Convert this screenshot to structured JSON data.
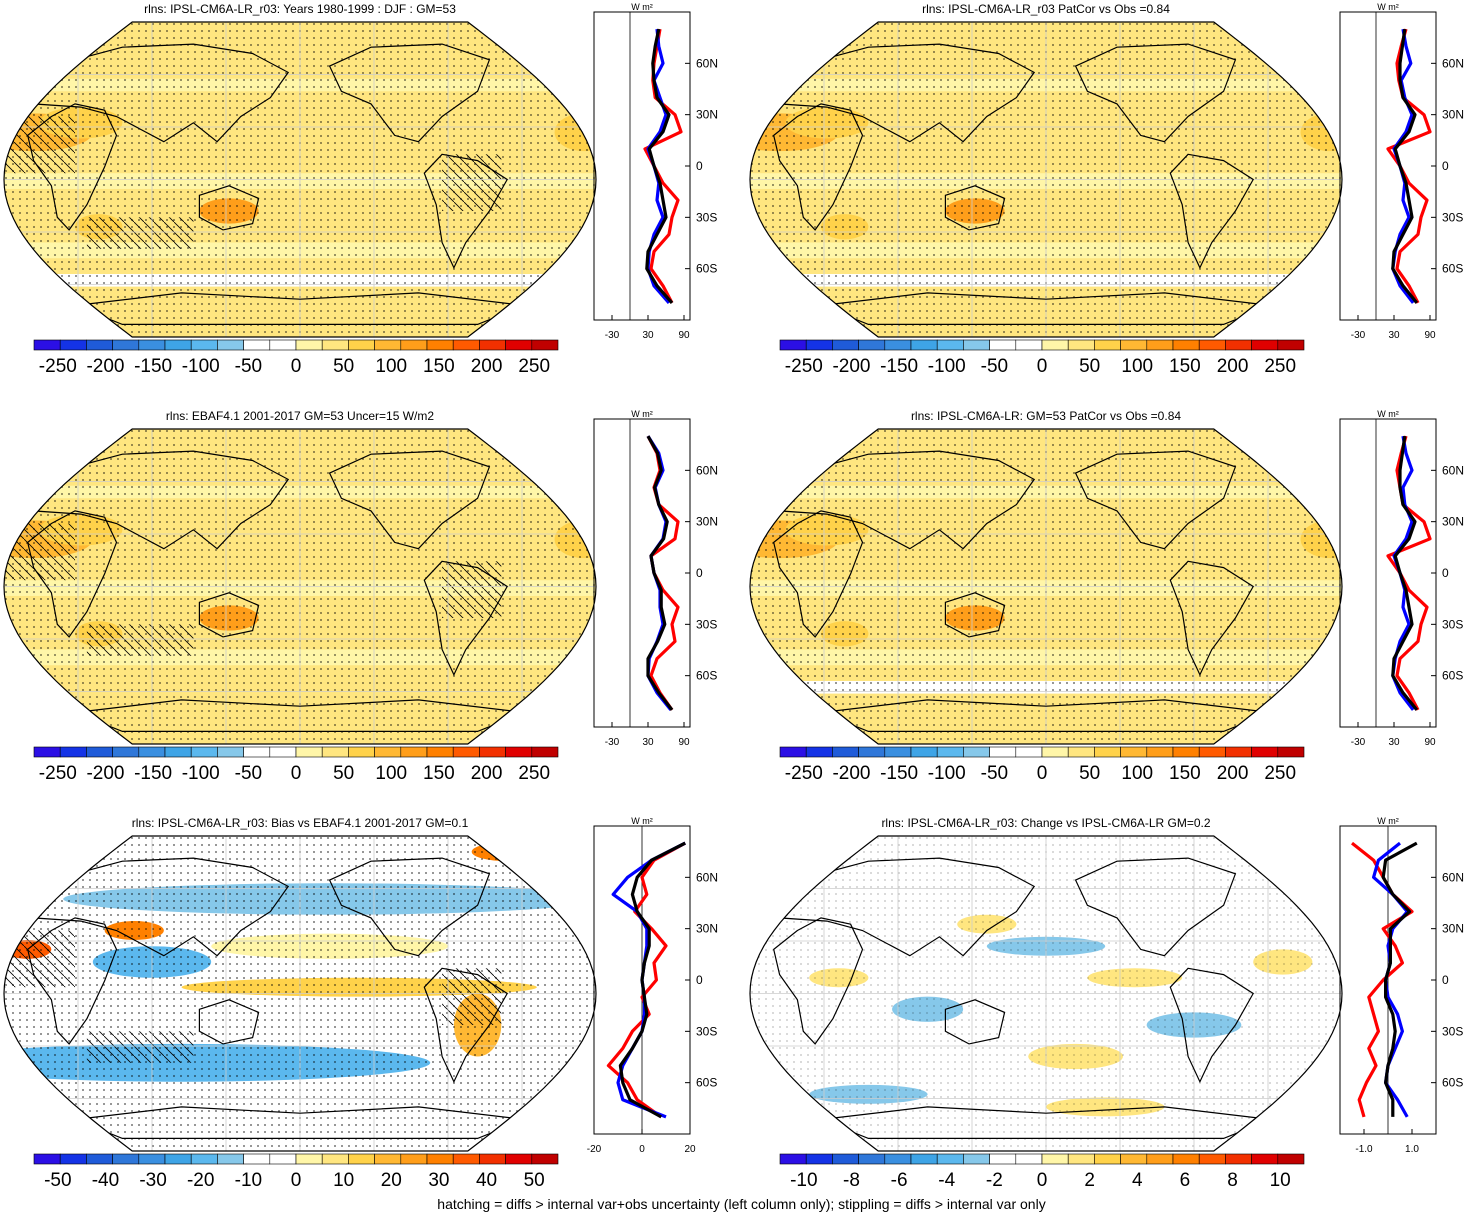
{
  "footer_note": "hatching = diffs > internal var+obs uncertainty (left column only); stippling = diffs > internal var only",
  "colors": {
    "land_outline": "#000000",
    "series_red": "#ff0000",
    "series_blue": "#0000ff",
    "series_black": "#000000"
  },
  "chart_data": [
    {
      "type": "heatmap",
      "title": "rlns: IPSL-CM6A-LR_r03: Years 1980-1999 : DJF : GM=53",
      "map_projection": "Robinson",
      "colorbar": {
        "ticks": [
          "-250",
          "-200",
          "-150",
          "-100",
          "-50",
          "0",
          "50",
          "100",
          "150",
          "200",
          "250"
        ],
        "range": [
          -275,
          275
        ],
        "colors": [
          "#2b0fe5",
          "#1433e6",
          "#1f5bd9",
          "#2f77d9",
          "#3a8fe0",
          "#3ea4e6",
          "#5bb8ee",
          "#86c8ea",
          "#ffffff",
          "#ffffff",
          "#fff6a8",
          "#ffe680",
          "#ffd24a",
          "#ffb833",
          "#ff9e1a",
          "#ff8000",
          "#ff5a00",
          "#f23000",
          "#e00000",
          "#c00000"
        ]
      },
      "pattern": {
        "base": "#ffe680",
        "white_band": true,
        "stippling": true,
        "hatching": true
      },
      "profile": {
        "unit": "W m²",
        "xlim": [
          -60,
          100
        ],
        "xticks": [
          "-30",
          "30",
          "90"
        ],
        "yticks": [
          "60N",
          "30N",
          "0",
          "30S",
          "60S"
        ],
        "lat_grid": [
          80,
          70,
          60,
          50,
          40,
          30,
          20,
          10,
          0,
          -10,
          -20,
          -30,
          -40,
          -50,
          -60,
          -70,
          -80
        ],
        "series": [
          {
            "color": "#ff0000",
            "values": [
              50,
              45,
              40,
              38,
              42,
              75,
              85,
              25,
              40,
              55,
              80,
              70,
              65,
              40,
              35,
              55,
              70
            ]
          },
          {
            "color": "#0000ff",
            "values": [
              45,
              48,
              55,
              40,
              50,
              60,
              50,
              30,
              40,
              48,
              45,
              55,
              40,
              32,
              30,
              40,
              65
            ]
          },
          {
            "color": "#000000",
            "values": [
              48,
              42,
              38,
              40,
              45,
              65,
              55,
              32,
              40,
              50,
              55,
              60,
              45,
              30,
              28,
              45,
              70
            ]
          }
        ]
      }
    },
    {
      "type": "heatmap",
      "title": "rlns: IPSL-CM6A-LR_r03 PatCor vs Obs =0.84",
      "map_projection": "Robinson",
      "colorbar": {
        "ticks": [
          "-250",
          "-200",
          "-150",
          "-100",
          "-50",
          "0",
          "50",
          "100",
          "150",
          "200",
          "250"
        ],
        "range": [
          -275,
          275
        ],
        "colors": [
          "#2b0fe5",
          "#1433e6",
          "#1f5bd9",
          "#2f77d9",
          "#3a8fe0",
          "#3ea4e6",
          "#5bb8ee",
          "#86c8ea",
          "#ffffff",
          "#ffffff",
          "#fff6a8",
          "#ffe680",
          "#ffd24a",
          "#ffb833",
          "#ff9e1a",
          "#ff8000",
          "#ff5a00",
          "#f23000",
          "#e00000",
          "#c00000"
        ]
      },
      "pattern": {
        "base": "#ffe680",
        "white_band": true,
        "stippling": true,
        "hatching": false
      },
      "profile": {
        "unit": "W m²",
        "xlim": [
          -60,
          100
        ],
        "xticks": [
          "-30",
          "30",
          "90"
        ],
        "yticks": [
          "60N",
          "30N",
          "0",
          "30S",
          "60S"
        ],
        "lat_grid": [
          80,
          70,
          60,
          50,
          40,
          30,
          20,
          10,
          0,
          -10,
          -20,
          -30,
          -40,
          -50,
          -60,
          -70,
          -80
        ],
        "series": [
          {
            "color": "#ff0000",
            "values": [
              50,
              42,
              35,
              38,
              45,
              80,
              90,
              20,
              40,
              55,
              85,
              75,
              70,
              40,
              35,
              55,
              70
            ]
          },
          {
            "color": "#0000ff",
            "values": [
              45,
              50,
              58,
              42,
              48,
              60,
              50,
              30,
              40,
              48,
              45,
              55,
              40,
              32,
              28,
              40,
              62
            ]
          },
          {
            "color": "#000000",
            "values": [
              48,
              44,
              40,
              40,
              45,
              65,
              55,
              32,
              40,
              50,
              55,
              60,
              45,
              30,
              28,
              45,
              68
            ]
          }
        ]
      }
    },
    {
      "type": "heatmap",
      "title": "rlns: EBAF4.1 2001-2017 GM=53 Uncer=15 W/m2",
      "map_projection": "Robinson",
      "colorbar": {
        "ticks": [
          "-250",
          "-200",
          "-150",
          "-100",
          "-50",
          "0",
          "50",
          "100",
          "150",
          "200",
          "250"
        ],
        "range": [
          -275,
          275
        ],
        "colors": [
          "#2b0fe5",
          "#1433e6",
          "#1f5bd9",
          "#2f77d9",
          "#3a8fe0",
          "#3ea4e6",
          "#5bb8ee",
          "#86c8ea",
          "#ffffff",
          "#ffffff",
          "#fff6a8",
          "#ffe680",
          "#ffd24a",
          "#ffb833",
          "#ff9e1a",
          "#ff8000",
          "#ff5a00",
          "#f23000",
          "#e00000",
          "#c00000"
        ]
      },
      "pattern": {
        "base": "#ffe680",
        "white_band": false,
        "stippling": true,
        "hatching": true
      },
      "profile": {
        "unit": "W m²",
        "xlim": [
          -60,
          100
        ],
        "xticks": [
          "-30",
          "30",
          "90"
        ],
        "yticks": [
          "60N",
          "30N",
          "0",
          "30S",
          "60S"
        ],
        "lat_grid": [
          80,
          70,
          60,
          50,
          40,
          30,
          20,
          10,
          0,
          -10,
          -20,
          -30,
          -40,
          -50,
          -60,
          -70,
          -80
        ],
        "series": [
          {
            "color": "#ff0000",
            "values": [
              30,
              45,
              50,
              40,
              48,
              80,
              75,
              35,
              40,
              55,
              80,
              70,
              75,
              45,
              35,
              50,
              70
            ]
          },
          {
            "color": "#0000ff",
            "values": [
              30,
              48,
              55,
              42,
              48,
              60,
              55,
              35,
              40,
              50,
              50,
              55,
              45,
              32,
              30,
              45,
              68
            ]
          },
          {
            "color": "#000000",
            "values": [
              30,
              46,
              52,
              41,
              48,
              62,
              56,
              35,
              40,
              52,
              52,
              58,
              46,
              30,
              30,
              48,
              70
            ]
          }
        ]
      }
    },
    {
      "type": "heatmap",
      "title": "rlns: IPSL-CM6A-LR: GM=53 PatCor vs Obs =0.84",
      "map_projection": "Robinson",
      "colorbar": {
        "ticks": [
          "-250",
          "-200",
          "-150",
          "-100",
          "-50",
          "0",
          "50",
          "100",
          "150",
          "200",
          "250"
        ],
        "range": [
          -275,
          275
        ],
        "colors": [
          "#2b0fe5",
          "#1433e6",
          "#1f5bd9",
          "#2f77d9",
          "#3a8fe0",
          "#3ea4e6",
          "#5bb8ee",
          "#86c8ea",
          "#ffffff",
          "#ffffff",
          "#fff6a8",
          "#ffe680",
          "#ffd24a",
          "#ffb833",
          "#ff9e1a",
          "#ff8000",
          "#ff5a00",
          "#f23000",
          "#e00000",
          "#c00000"
        ]
      },
      "pattern": {
        "base": "#ffe680",
        "white_band": true,
        "stippling": true,
        "hatching": false
      },
      "profile": {
        "unit": "W m²",
        "xlim": [
          -60,
          100
        ],
        "xticks": [
          "-30",
          "30",
          "90"
        ],
        "yticks": [
          "60N",
          "30N",
          "0",
          "30S",
          "60S"
        ],
        "lat_grid": [
          80,
          70,
          60,
          50,
          40,
          30,
          20,
          10,
          0,
          -10,
          -20,
          -30,
          -40,
          -50,
          -60,
          -70,
          -80
        ],
        "series": [
          {
            "color": "#ff0000",
            "values": [
              50,
              42,
              35,
              40,
              45,
              80,
              90,
              20,
              40,
              55,
              85,
              75,
              70,
              40,
              35,
              55,
              70
            ]
          },
          {
            "color": "#0000ff",
            "values": [
              45,
              50,
              60,
              45,
              48,
              60,
              50,
              30,
              40,
              48,
              45,
              55,
              40,
              32,
              28,
              40,
              62
            ]
          },
          {
            "color": "#000000",
            "values": [
              48,
              44,
              40,
              40,
              45,
              65,
              55,
              32,
              40,
              50,
              55,
              60,
              45,
              30,
              28,
              45,
              68
            ]
          }
        ]
      }
    },
    {
      "type": "heatmap",
      "title": "rlns: IPSL-CM6A-LR_r03: Bias vs EBAF4.1 2001-2017 GM=0.1",
      "map_projection": "Robinson",
      "colorbar": {
        "ticks": [
          "-50",
          "-40",
          "-30",
          "-20",
          "-10",
          "0",
          "10",
          "20",
          "30",
          "40",
          "50"
        ],
        "range": [
          -55,
          55
        ],
        "colors": [
          "#2b0fe5",
          "#1433e6",
          "#1f5bd9",
          "#2f77d9",
          "#3a8fe0",
          "#3ea4e6",
          "#5bb8ee",
          "#86c8ea",
          "#ffffff",
          "#ffffff",
          "#fff6a8",
          "#ffe680",
          "#ffd24a",
          "#ffb833",
          "#ff9e1a",
          "#ff8000",
          "#ff5a00",
          "#f23000",
          "#e00000",
          "#c00000"
        ]
      },
      "pattern": {
        "base": "#ffffff",
        "white_band": false,
        "stippling": true,
        "hatching": true,
        "bias": true
      },
      "profile": {
        "unit": "W m²",
        "xlim": [
          -20,
          20
        ],
        "xticks": [
          "-20",
          "0",
          "20"
        ],
        "yticks": [
          "60N",
          "30N",
          "0",
          "30S",
          "60S"
        ],
        "lat_grid": [
          80,
          70,
          60,
          50,
          40,
          30,
          20,
          10,
          0,
          -10,
          -20,
          -30,
          -40,
          -50,
          -60,
          -70,
          -80
        ],
        "series": [
          {
            "color": "#ff0000",
            "values": [
              18,
              5,
              0,
              2,
              -3,
              4,
              10,
              5,
              6,
              0,
              3,
              -4,
              -8,
              -14,
              -6,
              -2,
              8
            ]
          },
          {
            "color": "#0000ff",
            "values": [
              18,
              4,
              -6,
              -12,
              -2,
              2,
              2,
              1,
              0,
              1,
              1,
              0,
              -4,
              -8,
              -10,
              -8,
              10
            ]
          },
          {
            "color": "#000000",
            "values": [
              18,
              4,
              -2,
              -4,
              -2,
              3,
              3,
              1,
              0,
              1,
              2,
              0,
              -4,
              -9,
              -8,
              -5,
              8
            ]
          }
        ]
      }
    },
    {
      "type": "heatmap",
      "title": "rlns: IPSL-CM6A-LR_r03: Change vs IPSL-CM6A-LR GM=0.2",
      "map_projection": "Robinson",
      "colorbar": {
        "ticks": [
          "-10",
          "-8",
          "-6",
          "-4",
          "-2",
          "0",
          "2",
          "4",
          "6",
          "8",
          "10"
        ],
        "range": [
          -11,
          11
        ],
        "colors": [
          "#2b0fe5",
          "#1433e6",
          "#1f5bd9",
          "#2f77d9",
          "#3a8fe0",
          "#3ea4e6",
          "#5bb8ee",
          "#86c8ea",
          "#ffffff",
          "#ffffff",
          "#fff6a8",
          "#ffe680",
          "#ffd24a",
          "#ffb833",
          "#ff9e1a",
          "#ff8000",
          "#ff5a00",
          "#f23000",
          "#e00000",
          "#c00000"
        ]
      },
      "pattern": {
        "base": "#ffffff",
        "white_band": false,
        "stippling": true,
        "hatching": false,
        "change": true
      },
      "profile": {
        "unit": "W m²",
        "xlim": [
          -2,
          2
        ],
        "xticks": [
          "-1.0",
          "1.0"
        ],
        "yticks": [
          "60N",
          "30N",
          "0",
          "30S",
          "60S"
        ],
        "lat_grid": [
          80,
          70,
          60,
          50,
          40,
          30,
          20,
          10,
          0,
          -10,
          -20,
          -30,
          -40,
          -50,
          -60,
          -70,
          -80
        ],
        "series": [
          {
            "color": "#ff0000",
            "values": [
              -1.5,
              -0.6,
              -0.2,
              0.2,
              1.0,
              -0.2,
              0.3,
              0.6,
              -0.2,
              -0.8,
              -0.6,
              -0.4,
              -0.8,
              -0.5,
              -0.9,
              -1.2,
              -1.0
            ]
          },
          {
            "color": "#0000ff",
            "values": [
              0.5,
              -0.4,
              -0.6,
              0.2,
              0.8,
              0.2,
              0.0,
              0.1,
              -0.1,
              0.0,
              0.4,
              0.6,
              0.3,
              0.0,
              -0.1,
              0.4,
              0.8
            ]
          },
          {
            "color": "#000000",
            "values": [
              1.2,
              -0.1,
              -0.2,
              0.2,
              0.9,
              0.1,
              0.1,
              0.1,
              -0.1,
              -0.1,
              0.2,
              0.3,
              0.2,
              0.0,
              -0.1,
              0.2,
              0.2
            ]
          }
        ]
      }
    }
  ]
}
